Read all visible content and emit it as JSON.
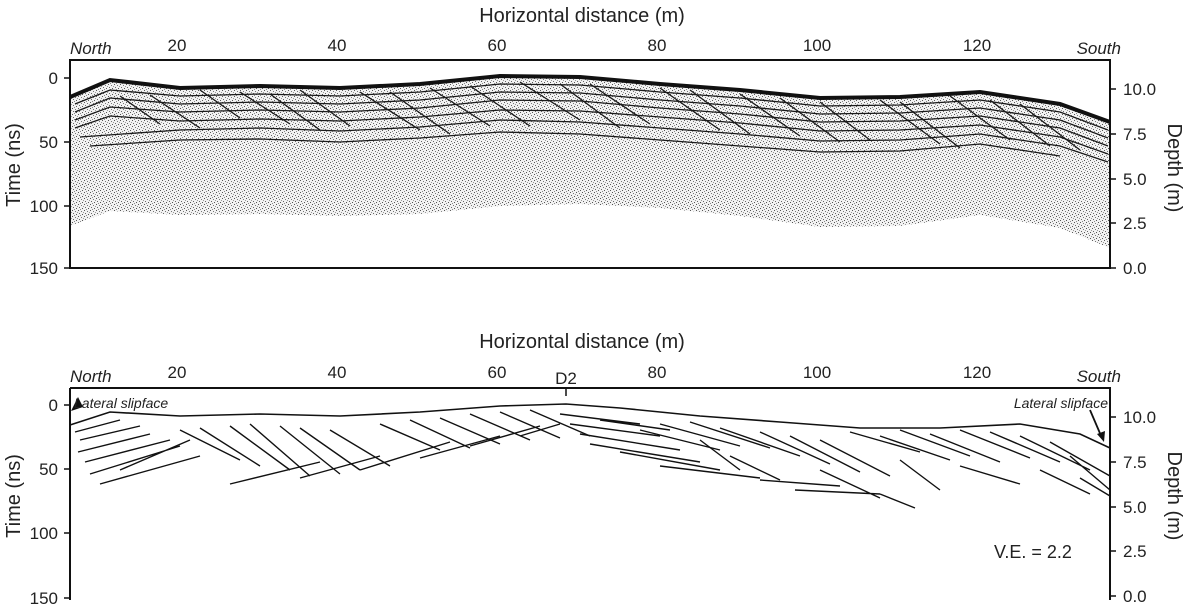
{
  "top_panel": {
    "x_axis_title": "Horizontal distance (m)",
    "y_left_title": "Time (ns)",
    "y_right_title": "Depth (m)",
    "x_ticks": [
      "20",
      "40",
      "60",
      "80",
      "100",
      "120"
    ],
    "y_left_ticks": [
      "0",
      "50",
      "100",
      "150"
    ],
    "y_right_ticks": [
      "10.0",
      "7.5",
      "5.0",
      "2.5",
      "0.0"
    ],
    "north_label": "North",
    "south_label": "South"
  },
  "bottom_panel": {
    "x_axis_title": "Horizontal distance (m)",
    "y_left_title": "Time (ns)",
    "y_right_title": "Depth (m)",
    "x_ticks": [
      "20",
      "40",
      "60",
      "80",
      "100",
      "120"
    ],
    "y_left_ticks": [
      "0",
      "50",
      "100",
      "150"
    ],
    "y_right_ticks": [
      "10.0",
      "7.5",
      "5.0",
      "2.5",
      "0.0"
    ],
    "north_label": "North",
    "south_label": "South",
    "marker_label": "D2",
    "left_note": "Lateral slipface",
    "right_note": "Lateral slipface",
    "ve_label": "V.E. = 2.2"
  },
  "colors": {
    "frame": "#111111",
    "radar_speckle": "#8a8a8a",
    "reflector": "#111111"
  }
}
